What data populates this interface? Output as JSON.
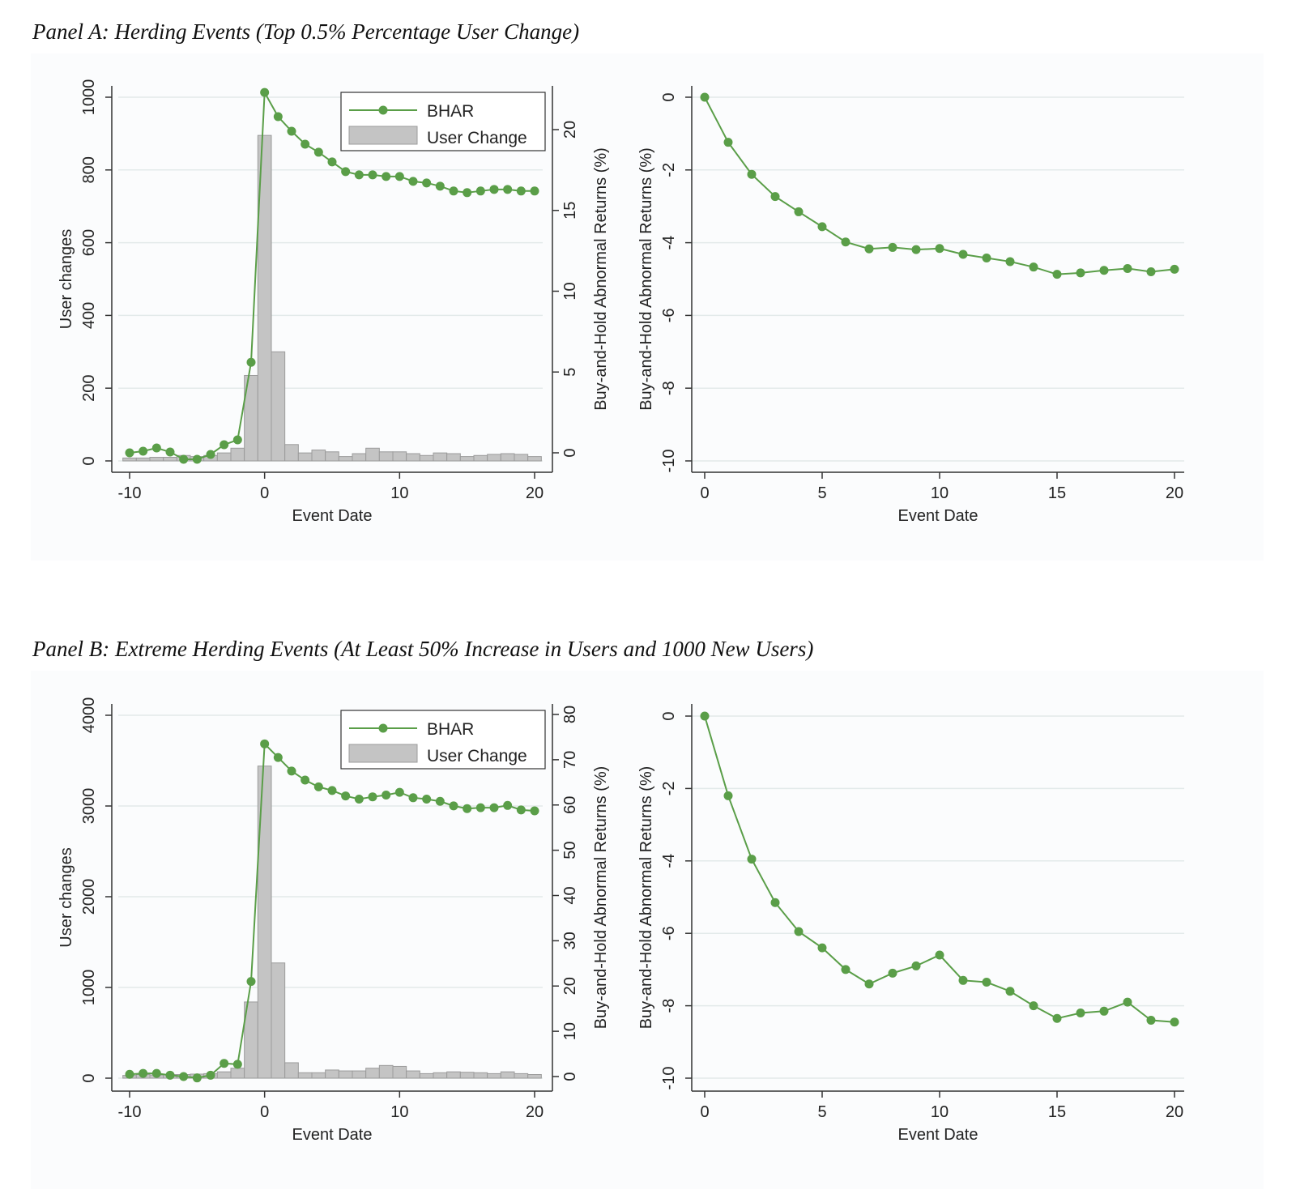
{
  "panels": [
    {
      "title": "Panel A: Herding Events (Top 0.5% Percentage User Change)",
      "left_chart": {
        "type": "bar+line",
        "x": [
          -10,
          -9,
          -8,
          -7,
          -6,
          -5,
          -4,
          -3,
          -2,
          -1,
          0,
          1,
          2,
          3,
          4,
          5,
          6,
          7,
          8,
          9,
          10,
          11,
          12,
          13,
          14,
          15,
          16,
          17,
          18,
          19,
          20
        ],
        "bars": {
          "name": "User Change",
          "axis": "left",
          "values": [
            8,
            8,
            10,
            10,
            15,
            12,
            15,
            22,
            35,
            235,
            895,
            300,
            45,
            22,
            30,
            25,
            12,
            20,
            35,
            25,
            25,
            20,
            15,
            22,
            20,
            12,
            15,
            18,
            20,
            18,
            12
          ]
        },
        "line": {
          "name": "BHAR",
          "axis": "right",
          "color": "#5a9e48",
          "values": [
            0.0,
            0.1,
            0.3,
            0.05,
            -0.4,
            -0.4,
            -0.1,
            0.5,
            0.8,
            5.6,
            22.3,
            20.8,
            19.9,
            19.1,
            18.6,
            18.0,
            17.4,
            17.2,
            17.2,
            17.1,
            17.1,
            16.8,
            16.7,
            16.5,
            16.2,
            16.1,
            16.2,
            16.3,
            16.3,
            16.2,
            16.2
          ]
        },
        "xlabel": "Event Date",
        "ylabel_left": "User changes",
        "ylabel_right": "Buy-and-Hold Abnormal Returns (%)",
        "xticks": [
          -10,
          0,
          10,
          20
        ],
        "yticks_left": [
          0,
          200,
          400,
          600,
          800,
          1000
        ],
        "ylim_left": [
          0,
          1000
        ],
        "yticks_right": [
          0,
          5,
          10,
          15,
          20
        ],
        "legend": {
          "line": "BHAR",
          "bar": "User Change",
          "position": "top-right"
        }
      },
      "right_chart": {
        "type": "line",
        "x": [
          0,
          1,
          2,
          3,
          4,
          5,
          6,
          7,
          8,
          9,
          10,
          11,
          12,
          13,
          14,
          15,
          16,
          17,
          18,
          19,
          20
        ],
        "values": [
          0.0,
          -1.24,
          -2.12,
          -2.73,
          -3.15,
          -3.56,
          -3.98,
          -4.17,
          -4.13,
          -4.19,
          -4.16,
          -4.32,
          -4.42,
          -4.52,
          -4.67,
          -4.87,
          -4.83,
          -4.76,
          -4.71,
          -4.8,
          -4.73
        ],
        "color": "#5a9e48",
        "xlabel": "Event Date",
        "ylabel": "Buy-and-Hold Abnormal Returns (%)",
        "xticks": [
          0,
          5,
          10,
          15,
          20
        ],
        "yticks": [
          0,
          -2,
          -4,
          -6,
          -8,
          -10
        ],
        "ylim": [
          -10,
          0
        ]
      }
    },
    {
      "title": "Panel B: Extreme Herding Events (At Least 50% Increase in Users and 1000 New Users)",
      "left_chart": {
        "type": "bar+line",
        "x": [
          -10,
          -9,
          -8,
          -7,
          -6,
          -5,
          -4,
          -3,
          -2,
          -1,
          0,
          1,
          2,
          3,
          4,
          5,
          6,
          7,
          8,
          9,
          10,
          11,
          12,
          13,
          14,
          15,
          16,
          17,
          18,
          19,
          20
        ],
        "bars": {
          "name": "User Change",
          "axis": "left",
          "values": [
            30,
            40,
            35,
            40,
            40,
            45,
            50,
            70,
            110,
            840,
            3440,
            1270,
            170,
            60,
            60,
            90,
            80,
            80,
            110,
            140,
            130,
            80,
            50,
            60,
            70,
            65,
            60,
            50,
            70,
            50,
            40
          ]
        },
        "line": {
          "name": "BHAR",
          "axis": "right",
          "color": "#5a9e48",
          "values": [
            0.5,
            0.7,
            0.7,
            0.3,
            0.0,
            -0.3,
            0.3,
            2.9,
            2.7,
            21.0,
            73.5,
            70.5,
            67.5,
            65.5,
            64.0,
            63.2,
            62.0,
            61.3,
            61.8,
            62.2,
            62.8,
            61.6,
            61.3,
            60.8,
            59.8,
            59.2,
            59.4,
            59.4,
            59.9,
            58.9,
            58.7
          ]
        },
        "xlabel": "Event Date",
        "ylabel_left": "User changes",
        "ylabel_right": "Buy-and-Hold Abnormal Returns (%)",
        "xticks": [
          -10,
          0,
          10,
          20
        ],
        "yticks_left": [
          0,
          1000,
          2000,
          3000,
          4000
        ],
        "ylim_left": [
          0,
          4000
        ],
        "yticks_right": [
          0,
          10,
          20,
          30,
          40,
          50,
          60,
          70,
          80
        ],
        "legend": {
          "line": "BHAR",
          "bar": "User Change",
          "position": "top-right"
        }
      },
      "right_chart": {
        "type": "line",
        "x": [
          0,
          1,
          2,
          3,
          4,
          5,
          6,
          7,
          8,
          9,
          10,
          11,
          12,
          13,
          14,
          15,
          16,
          17,
          18,
          19,
          20
        ],
        "values": [
          0.0,
          -2.2,
          -3.95,
          -5.15,
          -5.95,
          -6.4,
          -7.0,
          -7.4,
          -7.1,
          -6.9,
          -6.6,
          -7.3,
          -7.35,
          -7.6,
          -8.0,
          -8.35,
          -8.2,
          -8.15,
          -7.9,
          -8.4,
          -8.45
        ],
        "color": "#5a9e48",
        "xlabel": "Event Date",
        "ylabel": "Buy-and-Hold Abnormal Returns (%)",
        "xticks": [
          0,
          5,
          10,
          15,
          20
        ],
        "yticks": [
          0,
          -2,
          -4,
          -6,
          -8,
          -10
        ],
        "ylim": [
          -10,
          0
        ]
      }
    }
  ]
}
